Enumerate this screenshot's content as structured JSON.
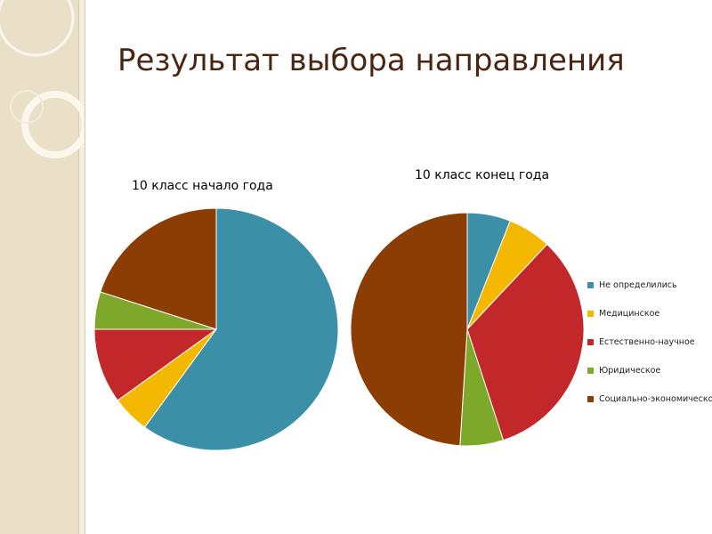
{
  "slide": {
    "title": "Результат выбора направления"
  },
  "chart_data": [
    {
      "type": "pie",
      "title": "10 класс начало года",
      "categories": [
        "Не определились",
        "Медицинское",
        "Естественно-научное",
        "Юридическое",
        "Социально-экономическое"
      ],
      "values": [
        60,
        5,
        10,
        5,
        20
      ],
      "colors": [
        "#3b8fa6",
        "#f5b800",
        "#c2282a",
        "#7ea82a",
        "#8b3d03"
      ],
      "legend": false
    },
    {
      "type": "pie",
      "title": "10 класс конец года",
      "categories": [
        "Не определились",
        "Медицинское",
        "Естественно-научное",
        "Юридическое",
        "Социально-экономическое"
      ],
      "values": [
        6,
        6,
        33,
        6,
        49
      ],
      "colors": [
        "#3b8fa6",
        "#f5b800",
        "#c2282a",
        "#7ea82a",
        "#8b3d03"
      ],
      "legend": "right"
    }
  ]
}
